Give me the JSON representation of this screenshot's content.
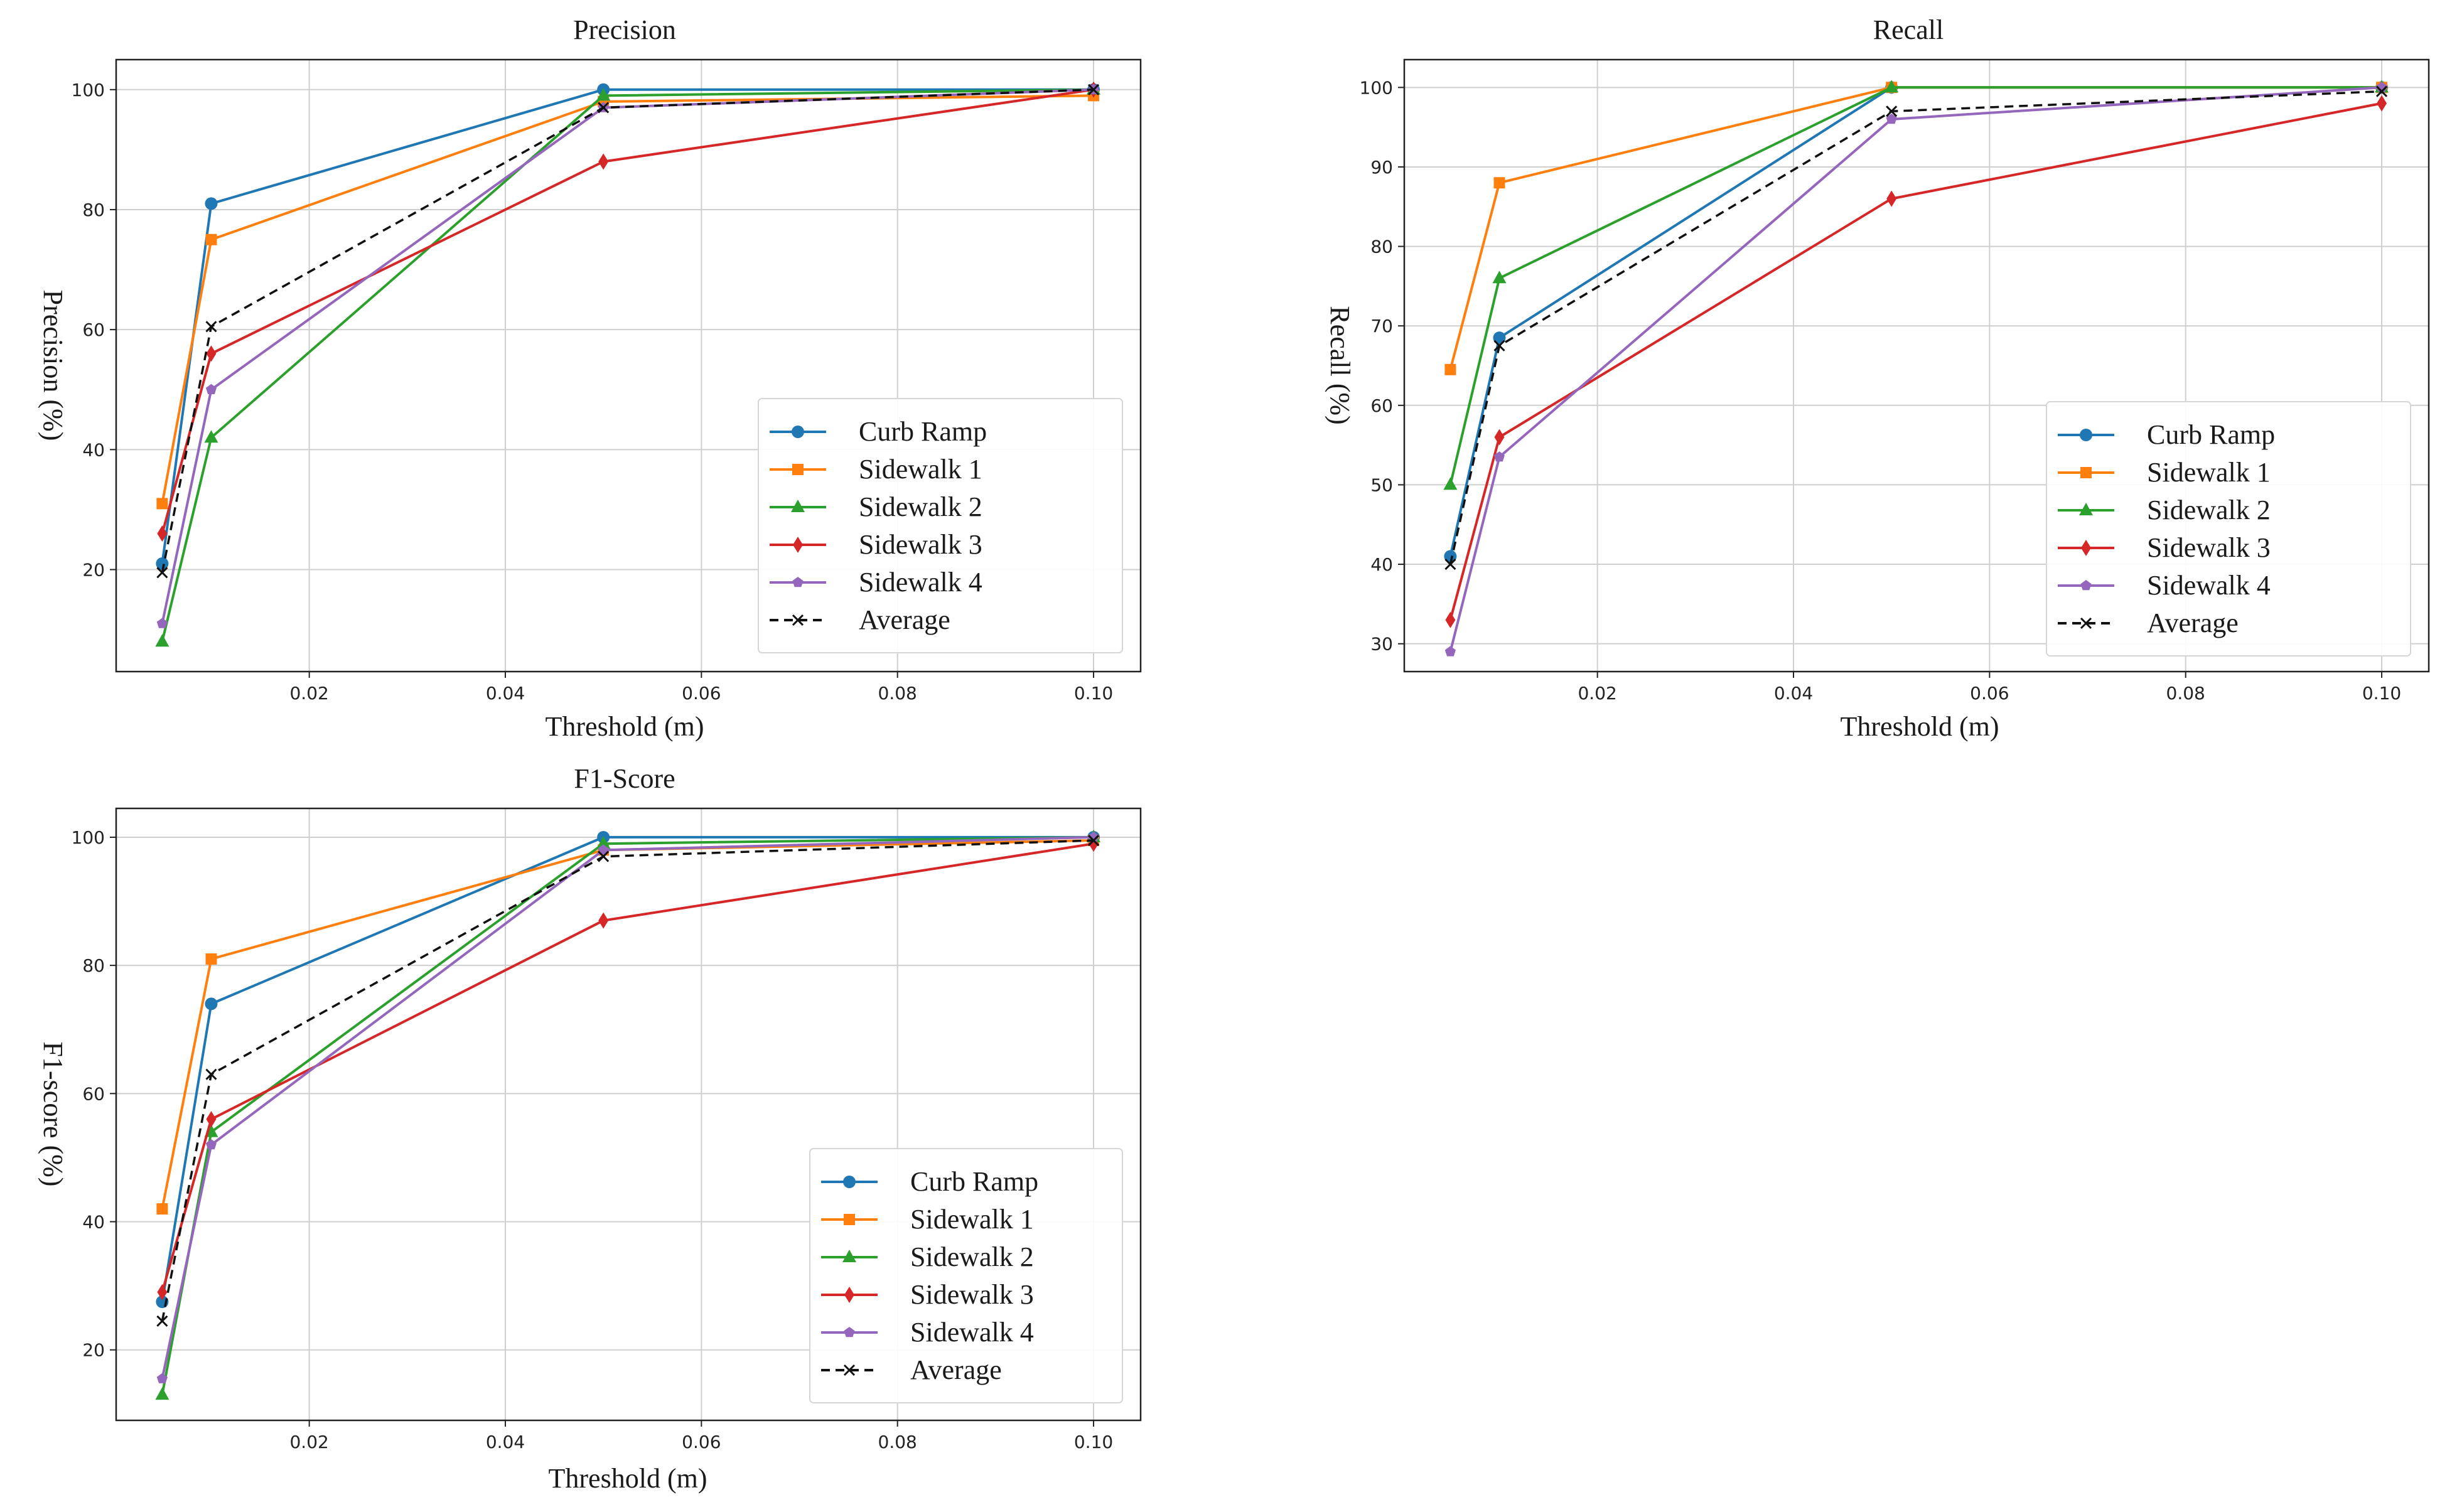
{
  "chart_data": [
    {
      "type": "line",
      "title": "Precision",
      "xlabel": "Threshold (m)",
      "ylabel": "Precision (%)",
      "xlim": [
        0.0003,
        0.1048
      ],
      "ylim": [
        3,
        105
      ],
      "xticks": [
        "0.02",
        "0.04",
        "0.06",
        "0.08",
        "0.10"
      ],
      "yticks": [
        "20",
        "40",
        "60",
        "80",
        "100"
      ],
      "x": [
        0.005,
        0.01,
        0.05,
        0.1
      ],
      "legend_position": "lower-right",
      "series": [
        {
          "name": "Curb Ramp",
          "color": "#1f77b4",
          "marker": "circle",
          "values": [
            21,
            81,
            100,
            100
          ]
        },
        {
          "name": "Sidewalk 1",
          "color": "#ff7f0e",
          "marker": "square",
          "values": [
            31,
            75,
            98,
            99
          ]
        },
        {
          "name": "Sidewalk 2",
          "color": "#2ca02c",
          "marker": "triangle",
          "values": [
            8,
            42,
            99,
            100
          ]
        },
        {
          "name": "Sidewalk 3",
          "color": "#d62728",
          "marker": "diamond",
          "values": [
            26,
            56,
            88,
            100
          ]
        },
        {
          "name": "Sidewalk 4",
          "color": "#9467bd",
          "marker": "pentagon",
          "values": [
            11,
            50,
            97,
            100
          ]
        },
        {
          "name": "Average",
          "color": "#111111",
          "marker": "x",
          "dashed": true,
          "values": [
            19.5,
            60.5,
            97,
            100
          ]
        }
      ]
    },
    {
      "type": "line",
      "title": "Recall",
      "xlabel": "Threshold (m)",
      "ylabel": "Recall (%)",
      "xlim": [
        0.0003,
        0.1048
      ],
      "ylim": [
        26.5,
        103.5
      ],
      "xticks": [
        "0.02",
        "0.04",
        "0.06",
        "0.08",
        "0.10"
      ],
      "yticks": [
        "30",
        "40",
        "50",
        "60",
        "70",
        "80",
        "90",
        "100"
      ],
      "x": [
        0.005,
        0.01,
        0.05,
        0.1
      ],
      "legend_position": "lower-right",
      "series": [
        {
          "name": "Curb Ramp",
          "color": "#1f77b4",
          "marker": "circle",
          "values": [
            41,
            68.5,
            100,
            100
          ]
        },
        {
          "name": "Sidewalk 1",
          "color": "#ff7f0e",
          "marker": "square",
          "values": [
            64.5,
            88,
            100,
            100
          ]
        },
        {
          "name": "Sidewalk 2",
          "color": "#2ca02c",
          "marker": "triangle",
          "values": [
            50,
            76,
            100,
            100
          ]
        },
        {
          "name": "Sidewalk 3",
          "color": "#d62728",
          "marker": "diamond",
          "values": [
            33,
            56,
            86,
            98
          ]
        },
        {
          "name": "Sidewalk 4",
          "color": "#9467bd",
          "marker": "pentagon",
          "values": [
            29,
            53.5,
            96,
            100
          ]
        },
        {
          "name": "Average",
          "color": "#111111",
          "marker": "x",
          "dashed": true,
          "values": [
            40,
            67.5,
            97,
            99.5
          ]
        }
      ]
    },
    {
      "type": "line",
      "title": "F1-Score",
      "xlabel": "Threshold (m)",
      "ylabel": "F1-score (%)",
      "xlim": [
        0.0003,
        0.1048
      ],
      "ylim": [
        9,
        104.5
      ],
      "xticks": [
        "0.02",
        "0.04",
        "0.06",
        "0.08",
        "0.10"
      ],
      "yticks": [
        "20",
        "40",
        "60",
        "80",
        "100"
      ],
      "x": [
        0.005,
        0.01,
        0.05,
        0.1
      ],
      "legend_position": "lower-right",
      "series": [
        {
          "name": "Curb Ramp",
          "color": "#1f77b4",
          "marker": "circle",
          "values": [
            27.5,
            74,
            100,
            100
          ]
        },
        {
          "name": "Sidewalk 1",
          "color": "#ff7f0e",
          "marker": "square",
          "values": [
            42,
            81,
            98,
            99.5
          ]
        },
        {
          "name": "Sidewalk 2",
          "color": "#2ca02c",
          "marker": "triangle",
          "values": [
            13,
            54,
            99,
            100
          ]
        },
        {
          "name": "Sidewalk 3",
          "color": "#d62728",
          "marker": "diamond",
          "values": [
            29,
            56,
            87,
            99
          ]
        },
        {
          "name": "Sidewalk 4",
          "color": "#9467bd",
          "marker": "pentagon",
          "values": [
            15.5,
            52,
            98,
            100
          ]
        },
        {
          "name": "Average",
          "color": "#111111",
          "marker": "x",
          "dashed": true,
          "values": [
            24.5,
            63,
            97,
            99.5
          ]
        }
      ]
    }
  ]
}
